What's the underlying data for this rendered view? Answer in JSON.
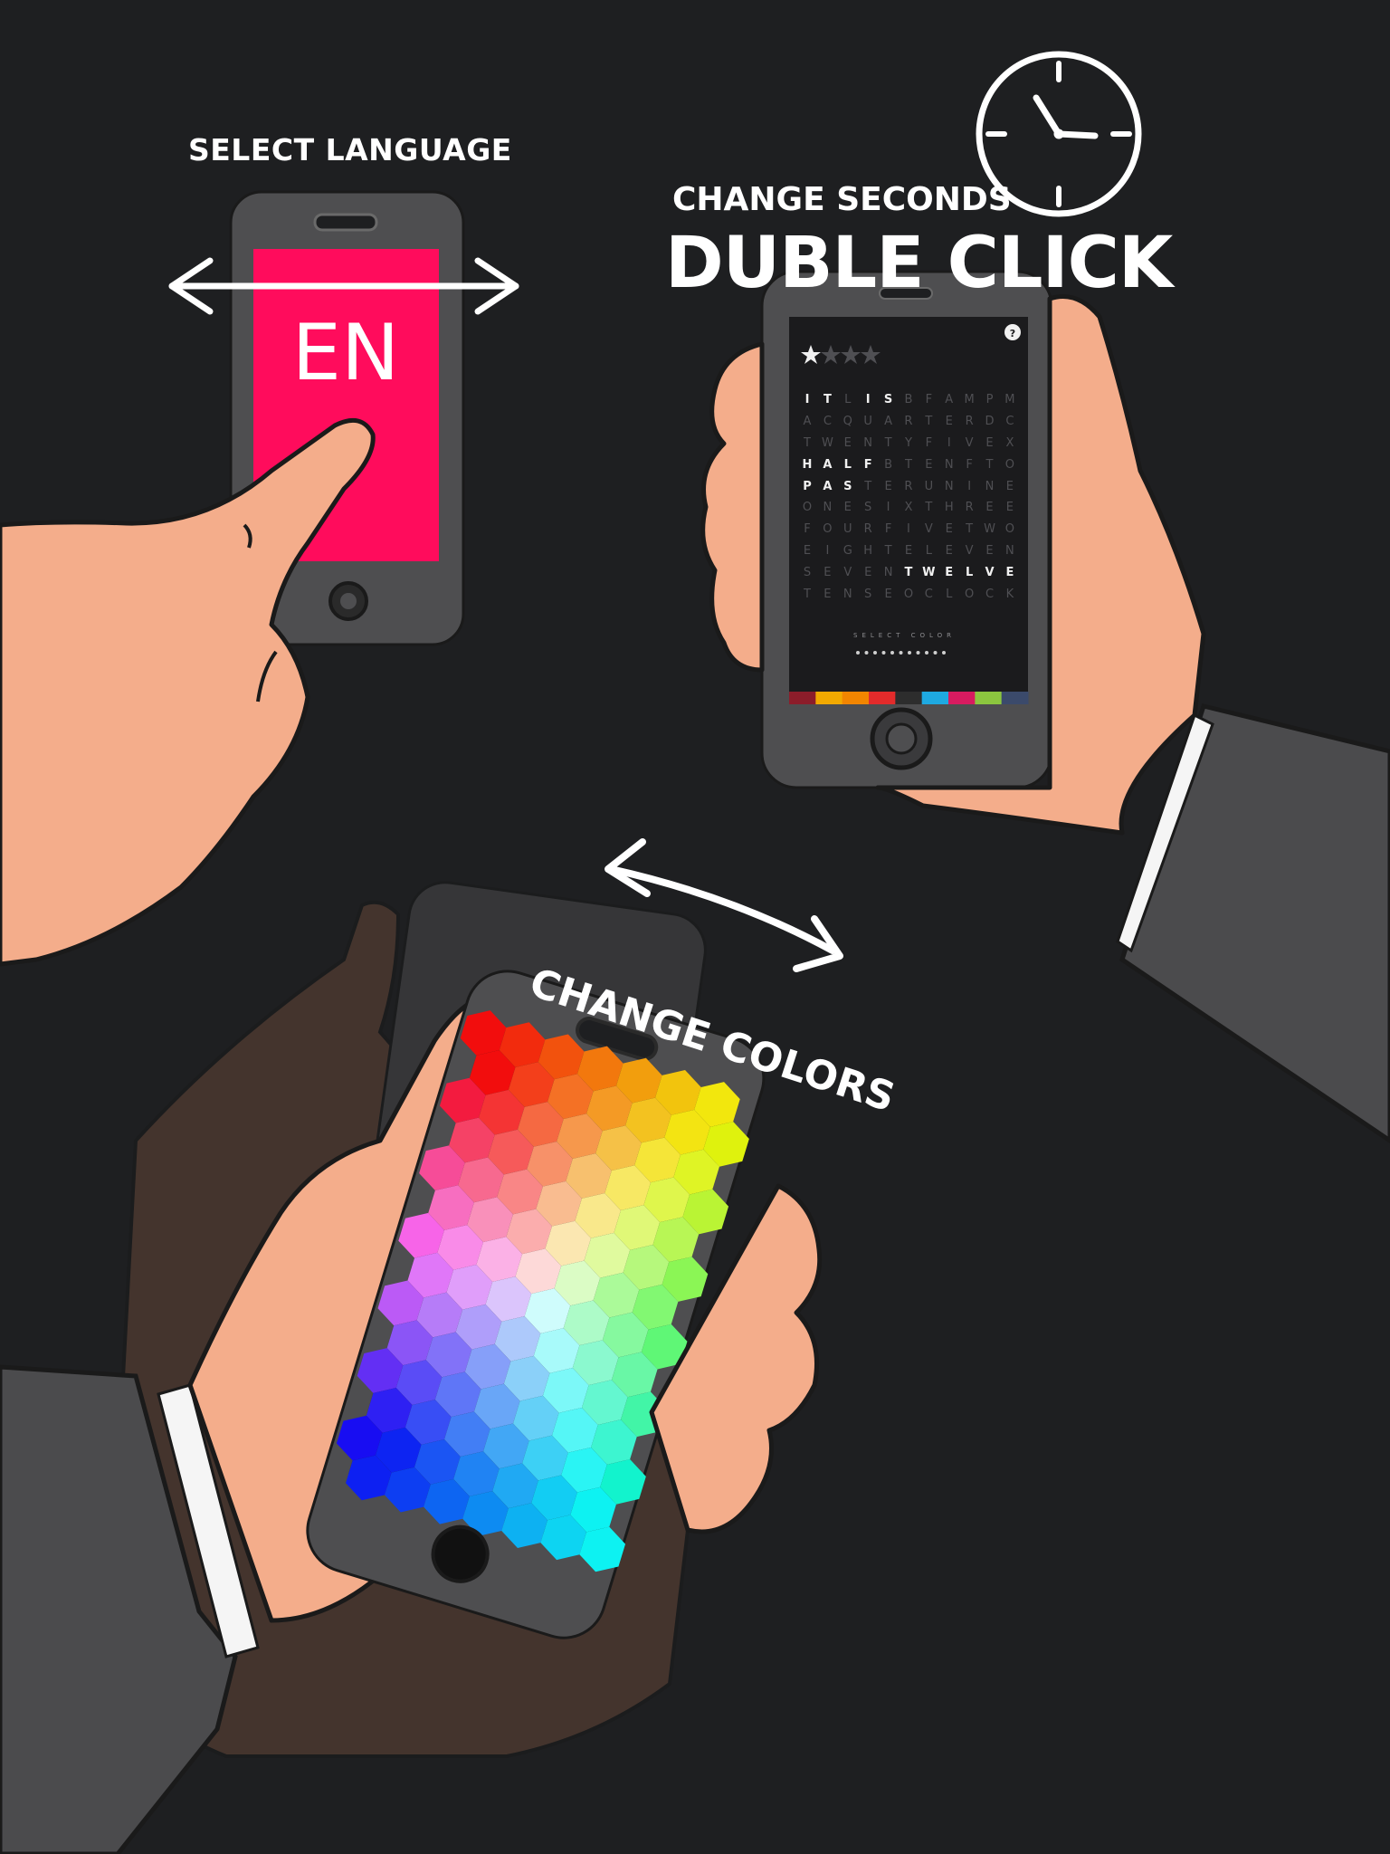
{
  "labels": {
    "select_language": "SELECT LANGUAGE",
    "change_seconds": "CHANGE SECONDS",
    "double_click": "DUBLE CLICK",
    "change_colors": "CHANGE COLORS"
  },
  "language_phone": {
    "code": "EN",
    "screen_color": "#ff0c5c",
    "gesture": "swipe-left-right"
  },
  "clock_phone": {
    "rating_filled": 1,
    "rating_total": 4,
    "help_icon": "help-icon",
    "grid": [
      "ITLISBFAMPM",
      "ACQUARTERDC",
      "TWENTYFIVEX",
      "HALFBTENFTO",
      "PASTERUNINE",
      "ONESIXTHREE",
      "FOURFIVETWO",
      "EIGHTELEVEN",
      "SEVENTWELVE",
      "TENSEOCLOCK"
    ],
    "lit": [
      [
        0,
        0
      ],
      [
        0,
        1
      ],
      [
        0,
        3
      ],
      [
        0,
        4
      ],
      [
        3,
        0
      ],
      [
        3,
        1
      ],
      [
        3,
        2
      ],
      [
        3,
        3
      ],
      [
        4,
        0
      ],
      [
        4,
        1
      ],
      [
        4,
        2
      ],
      [
        8,
        5
      ],
      [
        8,
        6
      ],
      [
        8,
        7
      ],
      [
        8,
        8
      ],
      [
        8,
        9
      ],
      [
        8,
        10
      ]
    ],
    "select_color_label": "SELECT COLOR",
    "color_dots": 11,
    "color_bar": [
      "#8c1d2a",
      "#f2a900",
      "#f28500",
      "#e32b2b",
      "#2d2d2d",
      "#1ea9e1",
      "#d81b60",
      "#8cc63f",
      "#3b4a6b"
    ]
  },
  "icons": {
    "clock": "clock-icon",
    "arrow_horizontal": "double-arrow-horizontal-icon",
    "arrow_curved": "curved-double-arrow-icon"
  }
}
